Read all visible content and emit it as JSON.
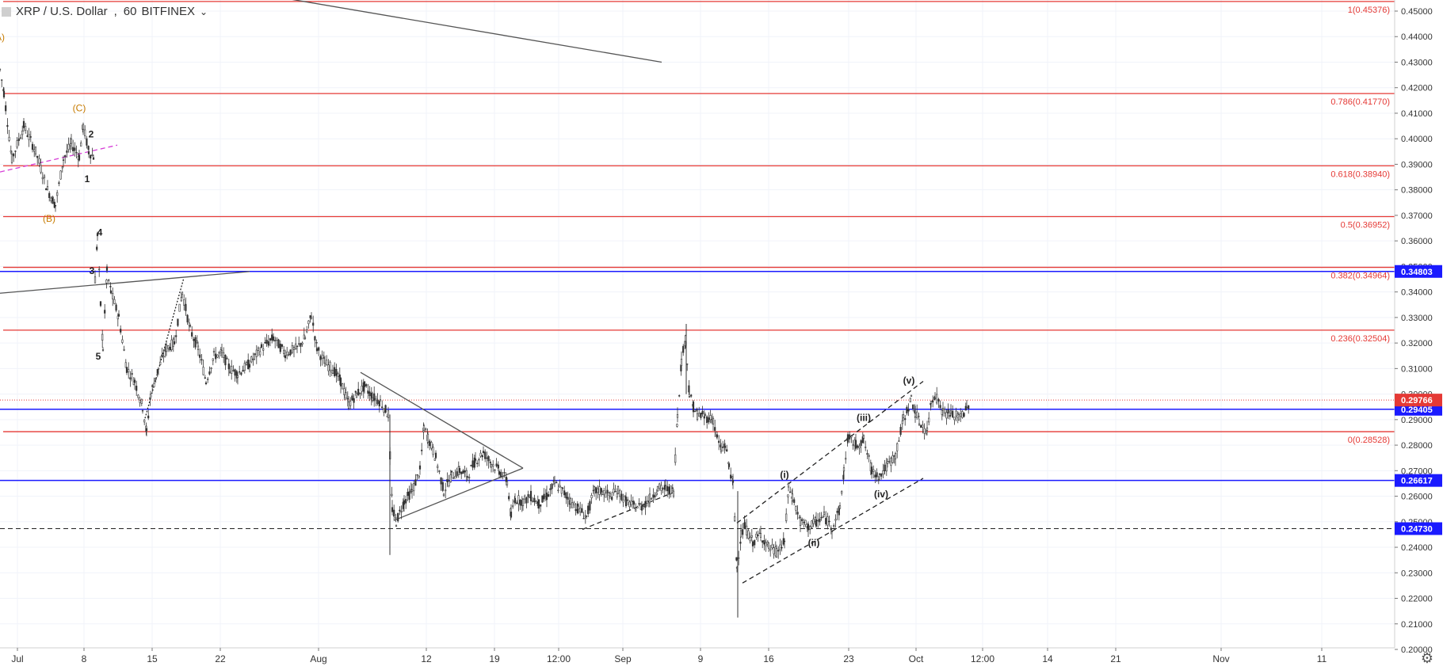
{
  "header": {
    "symbol": "XRP / U.S. Dollar",
    "interval": "60",
    "exchange": "BITFINEX"
  },
  "settings_icon": "gear-icon",
  "colors": {
    "fib_line": "#e53935",
    "support_line": "#1a1aff",
    "candle_up": "#222222",
    "candle_down": "#666666",
    "trend_line": "#555555",
    "wave_label_orange": "#c77b00"
  },
  "chart_data": {
    "type": "candlestick",
    "title": "",
    "xlabel": "",
    "ylabel": "",
    "ylim": [
      0.19,
      0.455
    ],
    "x_ticks": [
      "Jul",
      "8",
      "15",
      "22",
      "Aug",
      "12",
      "19",
      "12:00",
      "Sep",
      "9",
      "16",
      "23",
      "Oct",
      "12:00",
      "14",
      "21",
      "Nov",
      "11"
    ],
    "y_ticks": [
      "0.20000",
      "0.21000",
      "0.22000",
      "0.23000",
      "0.24000",
      "0.25000",
      "0.26000",
      "0.27000",
      "0.28000",
      "0.29000",
      "0.30000",
      "0.31000",
      "0.32000",
      "0.33000",
      "0.34000",
      "0.35000",
      "0.36000",
      "0.37000",
      "0.38000",
      "0.39000",
      "0.40000",
      "0.41000",
      "0.42000",
      "0.43000",
      "0.44000",
      "0.45000"
    ],
    "fibonacci_levels": [
      {
        "label": "1(0.45376)",
        "value": 0.45376
      },
      {
        "label": "0.786(0.41770)",
        "value": 0.4177
      },
      {
        "label": "0.618(0.38940)",
        "value": 0.3894
      },
      {
        "label": "0.5(0.36952)",
        "value": 0.36952
      },
      {
        "label": "0.382(0.34964)",
        "value": 0.34964
      },
      {
        "label": "0.236(0.32504)",
        "value": 0.32504
      },
      {
        "label": "0(0.28528)",
        "value": 0.28528
      }
    ],
    "price_levels": [
      {
        "label": "0.34803",
        "value": 0.34803,
        "style": "solid"
      },
      {
        "label": "0.29405",
        "value": 0.29405,
        "style": "solid"
      },
      {
        "label": "0.26617",
        "value": 0.26617,
        "style": "solid"
      },
      {
        "label": "0.24730",
        "value": 0.2473,
        "style": "dashed"
      }
    ],
    "last_price": {
      "label": "0.29766",
      "value": 0.29766
    },
    "price_path": [
      [
        0,
        0.427
      ],
      [
        5,
        0.418
      ],
      [
        15,
        0.392
      ],
      [
        30,
        0.405
      ],
      [
        45,
        0.395
      ],
      [
        60,
        0.38
      ],
      [
        70,
        0.374
      ],
      [
        80,
        0.392
      ],
      [
        90,
        0.398
      ],
      [
        100,
        0.393
      ],
      [
        105,
        0.405
      ],
      [
        112,
        0.395
      ],
      [
        118,
        0.393
      ],
      [
        120,
        0.345
      ],
      [
        123,
        0.362
      ],
      [
        127,
        0.335
      ],
      [
        130,
        0.318
      ],
      [
        135,
        0.348
      ],
      [
        140,
        0.34
      ],
      [
        150,
        0.33
      ],
      [
        160,
        0.31
      ],
      [
        170,
        0.305
      ],
      [
        180,
        0.295
      ],
      [
        185,
        0.285
      ],
      [
        190,
        0.3
      ],
      [
        200,
        0.31
      ],
      [
        210,
        0.318
      ],
      [
        220,
        0.32
      ],
      [
        230,
        0.34
      ],
      [
        240,
        0.325
      ],
      [
        250,
        0.318
      ],
      [
        260,
        0.305
      ],
      [
        270,
        0.315
      ],
      [
        280,
        0.316
      ],
      [
        290,
        0.31
      ],
      [
        300,
        0.308
      ],
      [
        315,
        0.312
      ],
      [
        330,
        0.318
      ],
      [
        345,
        0.322
      ],
      [
        360,
        0.316
      ],
      [
        375,
        0.318
      ],
      [
        385,
        0.322
      ],
      [
        393,
        0.331
      ],
      [
        400,
        0.318
      ],
      [
        410,
        0.312
      ],
      [
        420,
        0.31
      ],
      [
        430,
        0.305
      ],
      [
        440,
        0.296
      ],
      [
        450,
        0.3
      ],
      [
        460,
        0.303
      ],
      [
        470,
        0.299
      ],
      [
        480,
        0.297
      ],
      [
        490,
        0.292
      ],
      [
        495,
        0.255
      ],
      [
        500,
        0.25
      ],
      [
        510,
        0.258
      ],
      [
        520,
        0.262
      ],
      [
        530,
        0.27
      ],
      [
        535,
        0.287
      ],
      [
        540,
        0.283
      ],
      [
        550,
        0.275
      ],
      [
        560,
        0.262
      ],
      [
        570,
        0.268
      ],
      [
        580,
        0.27
      ],
      [
        590,
        0.268
      ],
      [
        600,
        0.274
      ],
      [
        610,
        0.277
      ],
      [
        620,
        0.273
      ],
      [
        630,
        0.27
      ],
      [
        640,
        0.266
      ],
      [
        645,
        0.252
      ],
      [
        650,
        0.259
      ],
      [
        660,
        0.258
      ],
      [
        670,
        0.26
      ],
      [
        680,
        0.257
      ],
      [
        690,
        0.26
      ],
      [
        700,
        0.265
      ],
      [
        710,
        0.262
      ],
      [
        720,
        0.258
      ],
      [
        730,
        0.255
      ],
      [
        740,
        0.252
      ],
      [
        750,
        0.262
      ],
      [
        760,
        0.262
      ],
      [
        770,
        0.26
      ],
      [
        780,
        0.262
      ],
      [
        790,
        0.258
      ],
      [
        800,
        0.256
      ],
      [
        810,
        0.256
      ],
      [
        820,
        0.259
      ],
      [
        830,
        0.263
      ],
      [
        840,
        0.263
      ],
      [
        850,
        0.262
      ],
      [
        855,
        0.292
      ],
      [
        860,
        0.313
      ],
      [
        865,
        0.322
      ],
      [
        870,
        0.3
      ],
      [
        875,
        0.295
      ],
      [
        880,
        0.292
      ],
      [
        890,
        0.291
      ],
      [
        900,
        0.29
      ],
      [
        905,
        0.283
      ],
      [
        910,
        0.278
      ],
      [
        915,
        0.28
      ],
      [
        920,
        0.272
      ],
      [
        925,
        0.265
      ],
      [
        930,
        0.232
      ],
      [
        935,
        0.245
      ],
      [
        940,
        0.248
      ],
      [
        950,
        0.242
      ],
      [
        960,
        0.245
      ],
      [
        970,
        0.24
      ],
      [
        980,
        0.238
      ],
      [
        990,
        0.242
      ],
      [
        995,
        0.263
      ],
      [
        1000,
        0.26
      ],
      [
        1010,
        0.25
      ],
      [
        1020,
        0.248
      ],
      [
        1030,
        0.25
      ],
      [
        1040,
        0.252
      ],
      [
        1050,
        0.248
      ],
      [
        1060,
        0.255
      ],
      [
        1065,
        0.27
      ],
      [
        1070,
        0.283
      ],
      [
        1080,
        0.28
      ],
      [
        1090,
        0.282
      ],
      [
        1100,
        0.27
      ],
      [
        1110,
        0.268
      ],
      [
        1120,
        0.272
      ],
      [
        1130,
        0.276
      ],
      [
        1140,
        0.29
      ],
      [
        1150,
        0.298
      ],
      [
        1155,
        0.293
      ],
      [
        1160,
        0.289
      ],
      [
        1170,
        0.285
      ],
      [
        1175,
        0.297
      ],
      [
        1180,
        0.3
      ],
      [
        1190,
        0.293
      ],
      [
        1200,
        0.292
      ],
      [
        1210,
        0.291
      ],
      [
        1220,
        0.294
      ],
      [
        1224,
        0.298
      ]
    ],
    "annotations": [
      {
        "text": "A)",
        "x": 0,
        "y": 0.4385,
        "color": "#c77b00"
      },
      {
        "text": "(C)",
        "x": 100,
        "y": 0.4108,
        "color": "#c77b00"
      },
      {
        "text": "(B)",
        "x": 62,
        "y": 0.3675,
        "color": "#c77b00"
      },
      {
        "text": "2",
        "x": 115,
        "y": 0.4005,
        "color": "#222"
      },
      {
        "text": "1",
        "x": 110,
        "y": 0.383,
        "color": "#222"
      },
      {
        "text": "4",
        "x": 126,
        "y": 0.362,
        "color": "#222"
      },
      {
        "text": "3",
        "x": 116,
        "y": 0.347,
        "color": "#222"
      },
      {
        "text": "5",
        "x": 124,
        "y": 0.3135,
        "color": "#222"
      },
      {
        "text": "(i)",
        "x": 990,
        "y": 0.2672,
        "color": "#222"
      },
      {
        "text": "(ii)",
        "x": 1027,
        "y": 0.2405,
        "color": "#222"
      },
      {
        "text": "(iii)",
        "x": 1090,
        "y": 0.2895,
        "color": "#222"
      },
      {
        "text": "(iv)",
        "x": 1112,
        "y": 0.2595,
        "color": "#222"
      },
      {
        "text": "(v)",
        "x": 1147,
        "y": 0.304,
        "color": "#222"
      }
    ],
    "trend_lines": [
      {
        "from": [
          360,
          0.455
        ],
        "to": [
          835,
          0.43
        ],
        "style": "solid",
        "color": "#555"
      },
      {
        "from": [
          0,
          0.3395
        ],
        "to": [
          315,
          0.348
        ],
        "style": "solid",
        "color": "#555"
      },
      {
        "from": [
          0,
          0.387
        ],
        "to": [
          148,
          0.3975
        ],
        "style": "dashed",
        "color": "#d63cd6"
      },
      {
        "from": [
          183,
          0.2905
        ],
        "to": [
          232,
          0.3455
        ],
        "style": "dotted",
        "color": "#222"
      },
      {
        "from": [
          455,
          0.3085
        ],
        "to": [
          660,
          0.271
        ],
        "style": "solid",
        "color": "#555"
      },
      {
        "from": [
          497,
          0.2505
        ],
        "to": [
          660,
          0.271
        ],
        "style": "solid",
        "color": "#555"
      },
      {
        "from": [
          735,
          0.247
        ],
        "to": [
          850,
          0.2615
        ],
        "style": "dashed",
        "color": "#222"
      },
      {
        "from": [
          930,
          0.2495
        ],
        "to": [
          1165,
          0.305
        ],
        "style": "dashed",
        "color": "#222"
      },
      {
        "from": [
          937,
          0.226
        ],
        "to": [
          1165,
          0.267
        ],
        "style": "dashed",
        "color": "#222"
      }
    ]
  }
}
